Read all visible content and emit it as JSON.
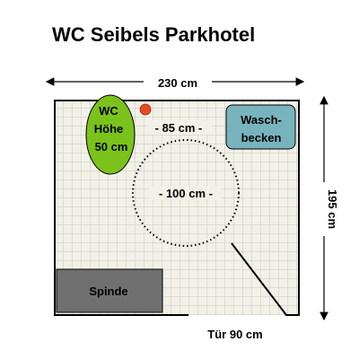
{
  "title": "WC Seibels Parkhotel",
  "width_label": "230 cm",
  "height_label": "195 cm",
  "door_label": "Tür 90 cm",
  "wc": {
    "line1": "WC",
    "line2": "Höhe",
    "line3": "50 cm"
  },
  "clearance_label": "- 85 cm -",
  "turning_circle_label": "- 100 cm -",
  "sink": {
    "line1": "Wasch-",
    "line2": "becken"
  },
  "locker_label": "Spinde",
  "colors": {
    "floor_tile": "#f2f1e8",
    "tile_grid": "#c8c8c0",
    "wc": "#7bc21a",
    "sink": "#78b4be",
    "locker": "#707070",
    "marker": "#e84a20"
  }
}
